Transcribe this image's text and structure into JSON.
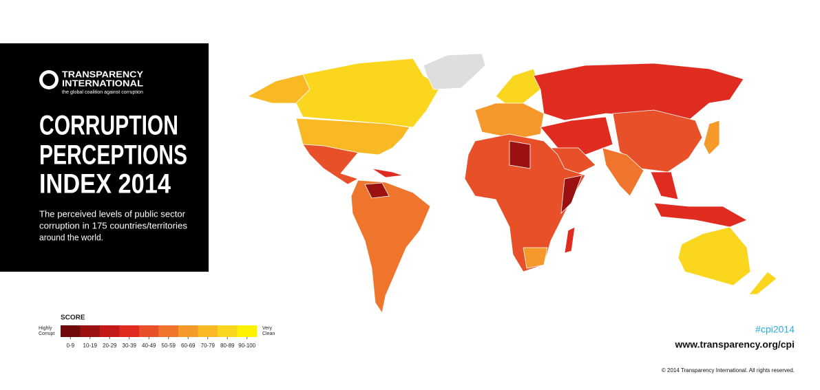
{
  "logo": {
    "line1": "TRANSPARENCY",
    "line2": "INTERNATIONAL",
    "tagline": "the global coalition against corruption"
  },
  "title_lines": [
    "CORRUPTION",
    "PERCEPTIONS",
    "INDEX 2014"
  ],
  "description": [
    "The perceived levels of public sector",
    "corruption in 175 countries/territories",
    "around the world."
  ],
  "legend": {
    "title": "SCORE",
    "low_label": [
      "Highly",
      "Corrupt"
    ],
    "high_label": [
      "Very",
      "Clean"
    ],
    "bins": [
      {
        "label": "0-9",
        "color": "#6e0a0a"
      },
      {
        "label": "10-19",
        "color": "#9b1111"
      },
      {
        "label": "20-29",
        "color": "#c51a1a"
      },
      {
        "label": "30-39",
        "color": "#e02b21"
      },
      {
        "label": "40-49",
        "color": "#e8502a"
      },
      {
        "label": "50-59",
        "color": "#f0752c"
      },
      {
        "label": "60-69",
        "color": "#f5992a"
      },
      {
        "label": "70-79",
        "color": "#f8b925"
      },
      {
        "label": "80-89",
        "color": "#fbd61e"
      },
      {
        "label": "90-100",
        "color": "#fff200"
      }
    ]
  },
  "hashtag": "#cpi2014",
  "url": "www.transparency.org/cpi",
  "copyright": "© 2014 Transparency International. All rights reserved."
}
